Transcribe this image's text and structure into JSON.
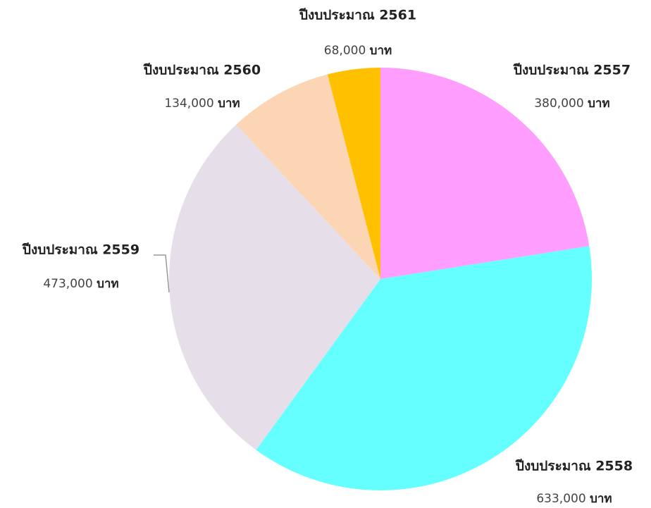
{
  "chart_data": {
    "type": "pie",
    "categories": [
      "ปีงบประมาณ 2557",
      "ปีงบประมาณ 2558",
      "ปีงบประมาณ 2559",
      "ปีงบประมาณ 2560",
      "ปีงบประมาณ 2561"
    ],
    "values": [
      380000,
      633000,
      473000,
      134000,
      68000
    ],
    "value_labels": [
      "380,000",
      "633,000",
      "473,000",
      "134,000",
      "68,000"
    ],
    "unit": "บาท",
    "colors": [
      "#ff9eff",
      "#66ffff",
      "#e6dfea",
      "#fcd5b5",
      "#ffc000"
    ]
  }
}
